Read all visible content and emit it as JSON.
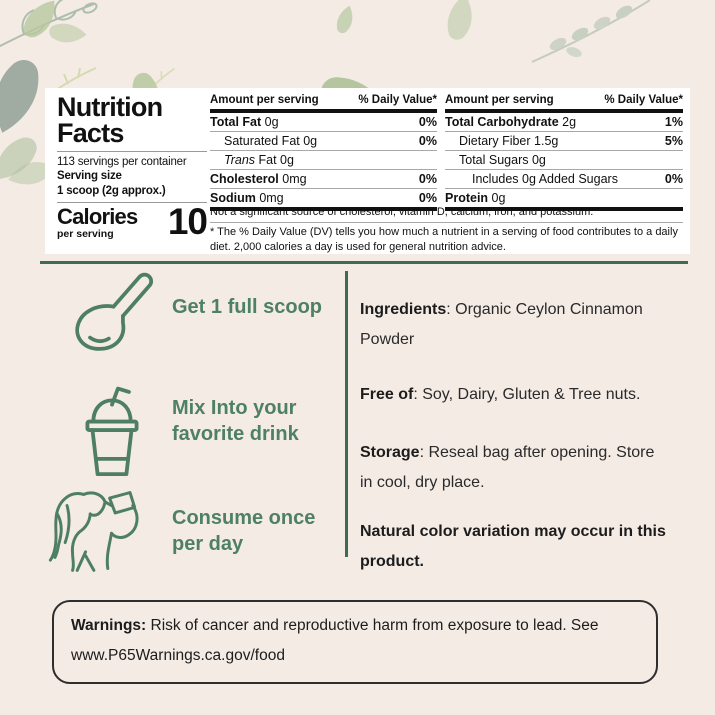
{
  "colors": {
    "background": "#f4ebe5",
    "panel": "#ffffff",
    "accent_green": "#4e8065",
    "divider_green": "#3f6b53",
    "text_dark": "#111111"
  },
  "nutrition_facts": {
    "title_line1": "Nutrition",
    "title_line2": "Facts",
    "servings_per_container": "113 servings per container",
    "serving_size_label": "Serving size",
    "serving_size_value": "1 scoop (2g approx.)",
    "calories_label": "Calories",
    "calories_sublabel": "per serving",
    "calories_value": "10",
    "amount_header": "Amount per serving",
    "dv_header": "% Daily Value*",
    "table_left": [
      {
        "name": "Total Fat",
        "bold": true,
        "amount": "0g",
        "dv": "0%",
        "indent": 0
      },
      {
        "name": "Saturated Fat",
        "bold": false,
        "amount": "0g",
        "dv": "0%",
        "indent": 1
      },
      {
        "name": "Trans",
        "italic": true,
        "suffix": " Fat",
        "bold": false,
        "amount": "0g",
        "dv": "",
        "indent": 1
      },
      {
        "name": "Cholesterol",
        "bold": true,
        "amount": "0mg",
        "dv": "0%",
        "indent": 0
      },
      {
        "name": "Sodium",
        "bold": true,
        "amount": "0mg",
        "dv": "0%",
        "indent": 0
      }
    ],
    "table_right": [
      {
        "name": "Total Carbohydrate",
        "bold": true,
        "amount": "2g",
        "dv": "1%",
        "indent": 0
      },
      {
        "name": "Dietary Fiber",
        "bold": false,
        "amount": "1.5g",
        "dv": "5%",
        "indent": 1
      },
      {
        "name": "Total Sugars",
        "bold": false,
        "amount": "0g",
        "dv": "",
        "indent": 1
      },
      {
        "name": "Includes 0g Added Sugars",
        "bold": false,
        "amount": "",
        "dv": "0%",
        "indent": 2
      },
      {
        "name": "Protein",
        "bold": true,
        "amount": "0g",
        "dv": "",
        "indent": 0
      }
    ],
    "not_significant_note": "Not a significant source of cholesterol, vitamin D, calcium, iron, and potassium.",
    "dv_footnote": "* The % Daily Value (DV) tells you how much a nutrient in a serving of food contributes to a daily diet. 2,000 calories a day is used for general nutrition advice."
  },
  "instructions": [
    {
      "icon": "scoop-icon",
      "label": "Get 1 full scoop"
    },
    {
      "icon": "drink-cup-icon",
      "label": "Mix Into your favorite drink"
    },
    {
      "icon": "person-drinking-icon",
      "label": "Consume once per day"
    }
  ],
  "product_info": [
    {
      "lead": "Ingredients",
      "text": ": Organic Ceylon Cinnamon Powder"
    },
    {
      "lead": "Free of",
      "text": ": Soy, Dairy, Gluten & Tree nuts."
    },
    {
      "lead": "Storage",
      "text": ": Reseal bag after opening. Store in cool, dry place."
    },
    {
      "lead": "",
      "text": "Natural color variation may occur in this product."
    }
  ],
  "warnings": {
    "lead": "Warnings:",
    "text": " Risk of cancer and reproductive harm from exposure to lead. See www.P65Warnings.ca.gov/food"
  }
}
